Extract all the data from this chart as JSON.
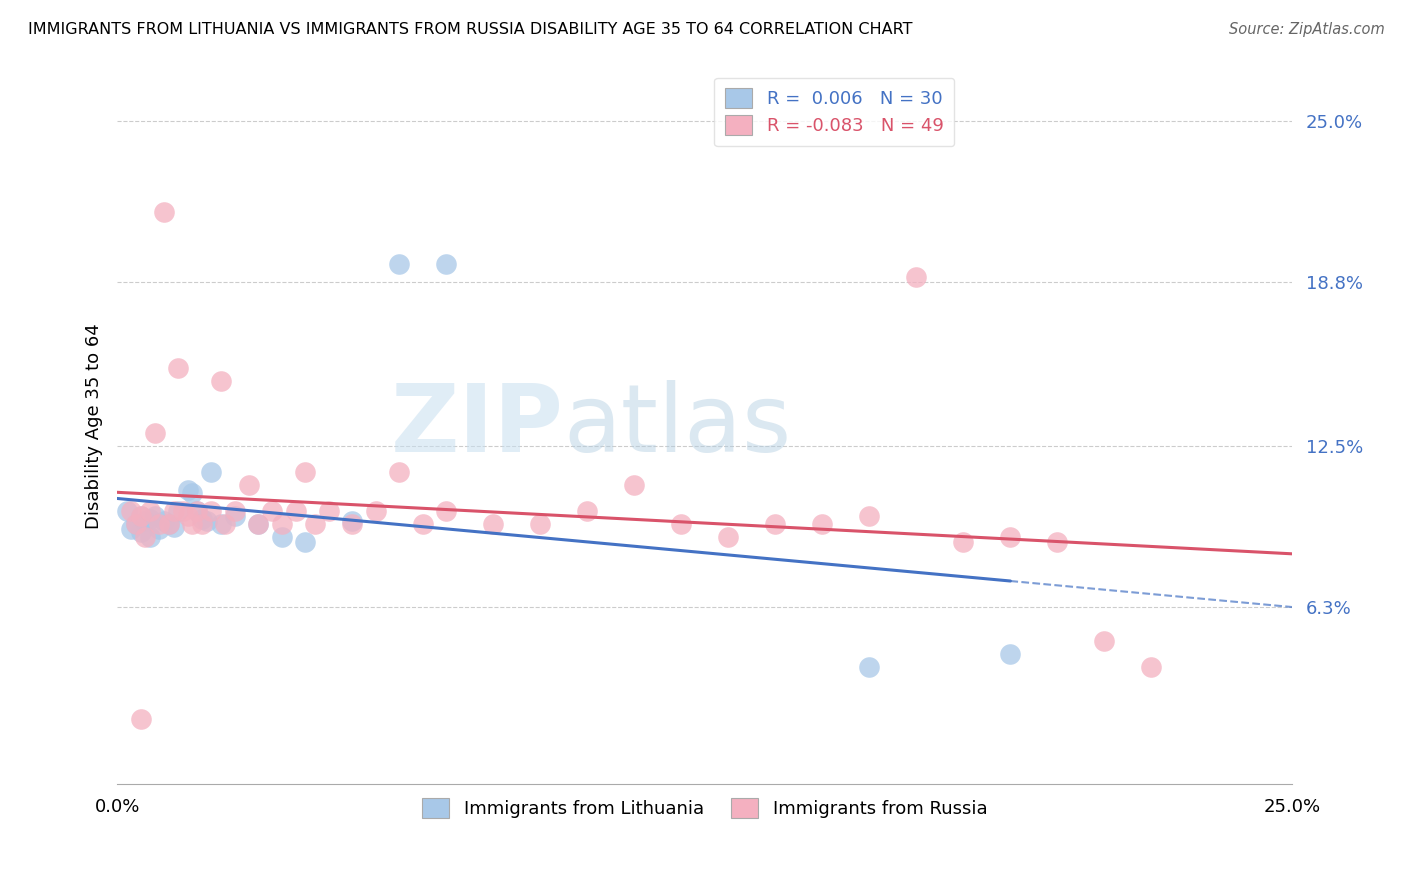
{
  "title": "IMMIGRANTS FROM LITHUANIA VS IMMIGRANTS FROM RUSSIA DISABILITY AGE 35 TO 64 CORRELATION CHART",
  "source": "Source: ZipAtlas.com",
  "ylabel": "Disability Age 35 to 64",
  "yticks": [
    0.063,
    0.125,
    0.188,
    0.25
  ],
  "ytick_labels": [
    "6.3%",
    "12.5%",
    "18.8%",
    "25.0%"
  ],
  "xmin": 0.0,
  "xmax": 0.25,
  "ymin": -0.005,
  "ymax": 0.27,
  "legend_r1": "R =  0.006   N = 30",
  "legend_r2": "R = -0.083   N = 49",
  "color_lithuania": "#a8c8e8",
  "color_russia": "#f4b0c0",
  "line_color_lithuania": "#4472c4",
  "line_color_russia": "#d9536a",
  "r_lithuania": 0.006,
  "r_russia": -0.083,
  "watermark_zip": "ZIP",
  "watermark_atlas": "atlas",
  "lithuania_x": [
    0.002,
    0.003,
    0.004,
    0.005,
    0.005,
    0.006,
    0.007,
    0.007,
    0.008,
    0.009,
    0.01,
    0.011,
    0.012,
    0.013,
    0.015,
    0.016,
    0.017,
    0.018,
    0.019,
    0.02,
    0.022,
    0.025,
    0.03,
    0.035,
    0.04,
    0.05,
    0.06,
    0.07,
    0.16,
    0.19
  ],
  "lithuania_y": [
    0.1,
    0.093,
    0.095,
    0.098,
    0.092,
    0.096,
    0.097,
    0.09,
    0.098,
    0.093,
    0.096,
    0.095,
    0.094,
    0.1,
    0.108,
    0.107,
    0.1,
    0.097,
    0.096,
    0.115,
    0.095,
    0.098,
    0.095,
    0.09,
    0.088,
    0.096,
    0.195,
    0.195,
    0.04,
    0.045
  ],
  "russia_x": [
    0.003,
    0.004,
    0.005,
    0.006,
    0.007,
    0.008,
    0.009,
    0.01,
    0.011,
    0.012,
    0.013,
    0.014,
    0.015,
    0.016,
    0.017,
    0.018,
    0.02,
    0.022,
    0.023,
    0.025,
    0.028,
    0.03,
    0.033,
    0.035,
    0.038,
    0.04,
    0.042,
    0.045,
    0.05,
    0.055,
    0.06,
    0.065,
    0.07,
    0.08,
    0.09,
    0.1,
    0.11,
    0.12,
    0.13,
    0.14,
    0.15,
    0.16,
    0.17,
    0.18,
    0.19,
    0.2,
    0.21,
    0.22,
    0.005
  ],
  "russia_y": [
    0.1,
    0.095,
    0.098,
    0.09,
    0.1,
    0.13,
    0.095,
    0.215,
    0.095,
    0.1,
    0.155,
    0.1,
    0.098,
    0.095,
    0.1,
    0.095,
    0.1,
    0.15,
    0.095,
    0.1,
    0.11,
    0.095,
    0.1,
    0.095,
    0.1,
    0.115,
    0.095,
    0.1,
    0.095,
    0.1,
    0.115,
    0.095,
    0.1,
    0.095,
    0.095,
    0.1,
    0.11,
    0.095,
    0.09,
    0.095,
    0.095,
    0.098,
    0.19,
    0.088,
    0.09,
    0.088,
    0.05,
    0.04,
    0.02
  ]
}
